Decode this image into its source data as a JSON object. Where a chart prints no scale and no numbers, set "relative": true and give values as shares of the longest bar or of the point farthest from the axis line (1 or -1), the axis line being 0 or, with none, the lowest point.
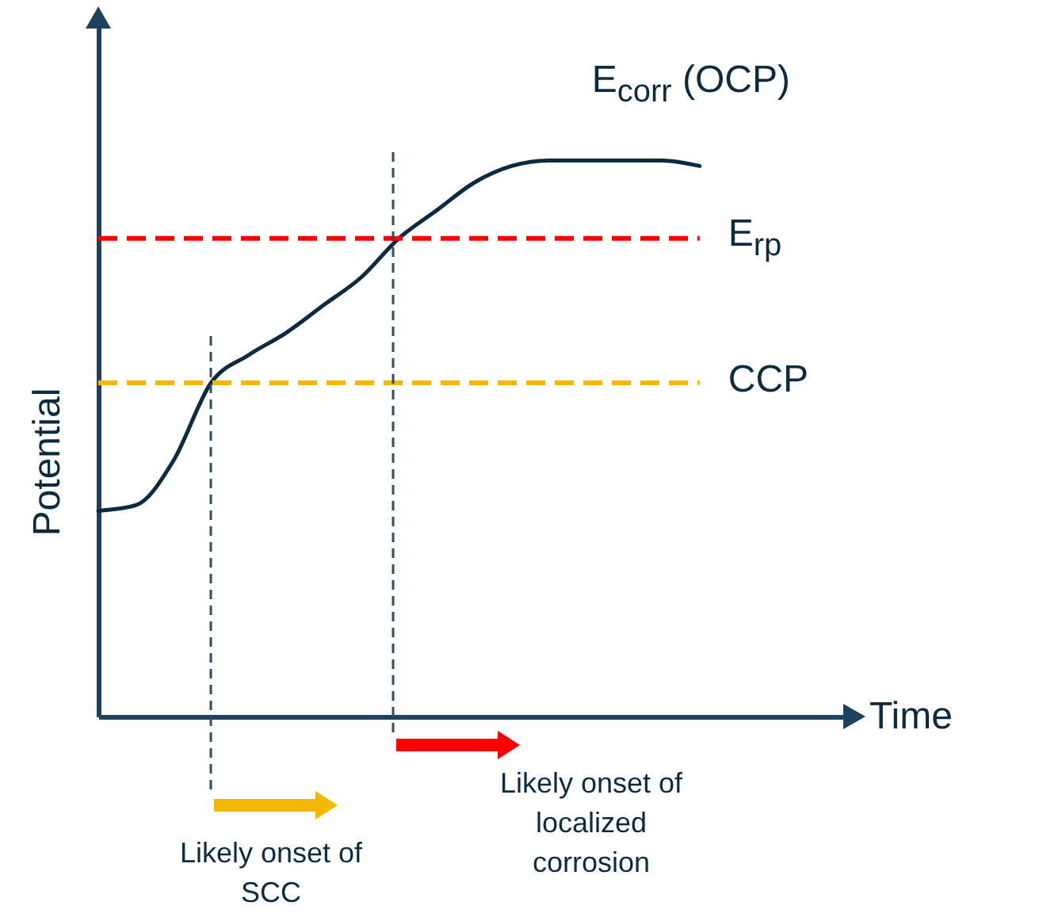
{
  "chart_data": {
    "type": "line",
    "xlabel": "Time",
    "ylabel": "Potential",
    "relative": true,
    "tick_labels": false,
    "marker": "none",
    "categories": [
      null,
      null,
      null,
      null,
      null,
      null,
      null,
      null,
      null,
      null,
      null,
      null,
      null,
      null,
      null,
      null,
      null
    ],
    "series": [
      {
        "name": "E$_{corr}$ (OCP)",
        "color": "#0d2b3e",
        "values": [
          0.37,
          0.38,
          0.46,
          0.6,
          0.65,
          0.69,
          0.74,
          0.79,
          0.86,
          0.91,
          0.96,
          0.99,
          1.0,
          1.0,
          1.0,
          1.0,
          0.99
        ]
      }
    ],
    "ref_lines": [
      {
        "axis": "y",
        "value": 0.86,
        "label": "E$_{rp}$",
        "color": "#ff0000",
        "line_style": "dashed"
      },
      {
        "axis": "y",
        "value": 0.6,
        "label": "CCP",
        "color": "#f5b800",
        "line_style": "dashed"
      }
    ],
    "annotations": [
      "Likely onset of\nSCC",
      "Likely onset of\nlocalized\ncorrosion"
    ]
  }
}
